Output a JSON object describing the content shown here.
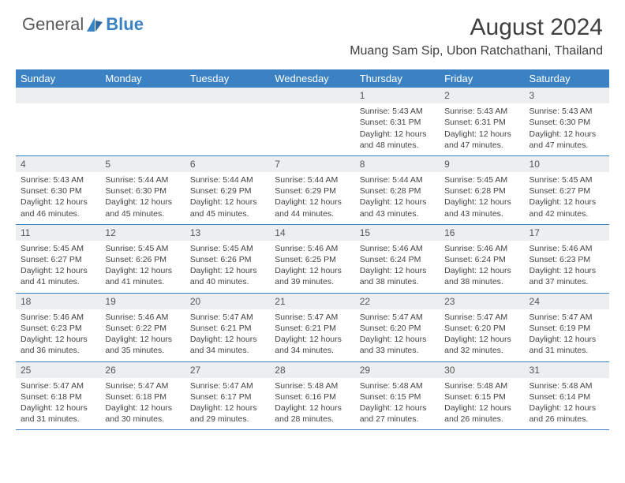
{
  "logo": {
    "text1": "General",
    "text2": "Blue"
  },
  "title": "August 2024",
  "location": "Muang Sam Sip, Ubon Ratchathani, Thailand",
  "colors": {
    "accent": "#3a82c4",
    "headerText": "#ffffff",
    "dayBar": "#eceef0",
    "text": "#444444",
    "background": "#ffffff"
  },
  "weekdays": [
    "Sunday",
    "Monday",
    "Tuesday",
    "Wednesday",
    "Thursday",
    "Friday",
    "Saturday"
  ],
  "weeks": [
    [
      null,
      null,
      null,
      null,
      {
        "n": "1",
        "sr": "5:43 AM",
        "ss": "6:31 PM",
        "dl": "12 hours and 48 minutes."
      },
      {
        "n": "2",
        "sr": "5:43 AM",
        "ss": "6:31 PM",
        "dl": "12 hours and 47 minutes."
      },
      {
        "n": "3",
        "sr": "5:43 AM",
        "ss": "6:30 PM",
        "dl": "12 hours and 47 minutes."
      }
    ],
    [
      {
        "n": "4",
        "sr": "5:43 AM",
        "ss": "6:30 PM",
        "dl": "12 hours and 46 minutes."
      },
      {
        "n": "5",
        "sr": "5:44 AM",
        "ss": "6:30 PM",
        "dl": "12 hours and 45 minutes."
      },
      {
        "n": "6",
        "sr": "5:44 AM",
        "ss": "6:29 PM",
        "dl": "12 hours and 45 minutes."
      },
      {
        "n": "7",
        "sr": "5:44 AM",
        "ss": "6:29 PM",
        "dl": "12 hours and 44 minutes."
      },
      {
        "n": "8",
        "sr": "5:44 AM",
        "ss": "6:28 PM",
        "dl": "12 hours and 43 minutes."
      },
      {
        "n": "9",
        "sr": "5:45 AM",
        "ss": "6:28 PM",
        "dl": "12 hours and 43 minutes."
      },
      {
        "n": "10",
        "sr": "5:45 AM",
        "ss": "6:27 PM",
        "dl": "12 hours and 42 minutes."
      }
    ],
    [
      {
        "n": "11",
        "sr": "5:45 AM",
        "ss": "6:27 PM",
        "dl": "12 hours and 41 minutes."
      },
      {
        "n": "12",
        "sr": "5:45 AM",
        "ss": "6:26 PM",
        "dl": "12 hours and 41 minutes."
      },
      {
        "n": "13",
        "sr": "5:45 AM",
        "ss": "6:26 PM",
        "dl": "12 hours and 40 minutes."
      },
      {
        "n": "14",
        "sr": "5:46 AM",
        "ss": "6:25 PM",
        "dl": "12 hours and 39 minutes."
      },
      {
        "n": "15",
        "sr": "5:46 AM",
        "ss": "6:24 PM",
        "dl": "12 hours and 38 minutes."
      },
      {
        "n": "16",
        "sr": "5:46 AM",
        "ss": "6:24 PM",
        "dl": "12 hours and 38 minutes."
      },
      {
        "n": "17",
        "sr": "5:46 AM",
        "ss": "6:23 PM",
        "dl": "12 hours and 37 minutes."
      }
    ],
    [
      {
        "n": "18",
        "sr": "5:46 AM",
        "ss": "6:23 PM",
        "dl": "12 hours and 36 minutes."
      },
      {
        "n": "19",
        "sr": "5:46 AM",
        "ss": "6:22 PM",
        "dl": "12 hours and 35 minutes."
      },
      {
        "n": "20",
        "sr": "5:47 AM",
        "ss": "6:21 PM",
        "dl": "12 hours and 34 minutes."
      },
      {
        "n": "21",
        "sr": "5:47 AM",
        "ss": "6:21 PM",
        "dl": "12 hours and 34 minutes."
      },
      {
        "n": "22",
        "sr": "5:47 AM",
        "ss": "6:20 PM",
        "dl": "12 hours and 33 minutes."
      },
      {
        "n": "23",
        "sr": "5:47 AM",
        "ss": "6:20 PM",
        "dl": "12 hours and 32 minutes."
      },
      {
        "n": "24",
        "sr": "5:47 AM",
        "ss": "6:19 PM",
        "dl": "12 hours and 31 minutes."
      }
    ],
    [
      {
        "n": "25",
        "sr": "5:47 AM",
        "ss": "6:18 PM",
        "dl": "12 hours and 31 minutes."
      },
      {
        "n": "26",
        "sr": "5:47 AM",
        "ss": "6:18 PM",
        "dl": "12 hours and 30 minutes."
      },
      {
        "n": "27",
        "sr": "5:47 AM",
        "ss": "6:17 PM",
        "dl": "12 hours and 29 minutes."
      },
      {
        "n": "28",
        "sr": "5:48 AM",
        "ss": "6:16 PM",
        "dl": "12 hours and 28 minutes."
      },
      {
        "n": "29",
        "sr": "5:48 AM",
        "ss": "6:15 PM",
        "dl": "12 hours and 27 minutes."
      },
      {
        "n": "30",
        "sr": "5:48 AM",
        "ss": "6:15 PM",
        "dl": "12 hours and 26 minutes."
      },
      {
        "n": "31",
        "sr": "5:48 AM",
        "ss": "6:14 PM",
        "dl": "12 hours and 26 minutes."
      }
    ]
  ],
  "labels": {
    "sunrise": "Sunrise:",
    "sunset": "Sunset:",
    "daylight": "Daylight:"
  }
}
